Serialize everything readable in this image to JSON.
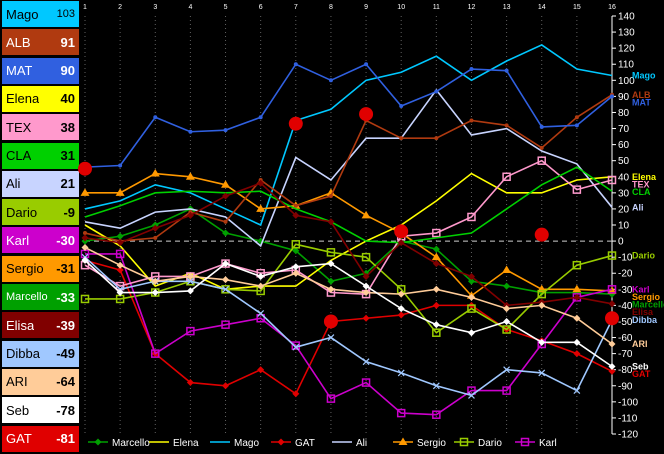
{
  "leaderboard": [
    {
      "name": "Mago",
      "value": "103",
      "bg": "#00c8ff",
      "fg": "#000000"
    },
    {
      "name": "ALB",
      "value": "91",
      "bg": "#b03a10",
      "fg": "#ffffff"
    },
    {
      "name": "MAT",
      "value": "90",
      "bg": "#3060e0",
      "fg": "#ffffff"
    },
    {
      "name": "Elena",
      "value": "40",
      "bg": "#ffff00",
      "fg": "#000000"
    },
    {
      "name": "TEX",
      "value": "38",
      "bg": "#ff99cc",
      "fg": "#000000"
    },
    {
      "name": "CLA",
      "value": "31",
      "bg": "#00d000",
      "fg": "#000000"
    },
    {
      "name": "Ali",
      "value": "21",
      "bg": "#c8d4ff",
      "fg": "#000000"
    },
    {
      "name": "Dario",
      "value": "-9",
      "bg": "#99cc00",
      "fg": "#000000"
    },
    {
      "name": "Karl",
      "value": "-30",
      "bg": "#cc00cc",
      "fg": "#ffffff"
    },
    {
      "name": "Sergio",
      "value": "-31",
      "bg": "#ff9900",
      "fg": "#000000"
    },
    {
      "name": "Marcello",
      "value": "-33",
      "bg": "#00a000",
      "fg": "#ffffff"
    },
    {
      "name": "Elisa",
      "value": "-39",
      "bg": "#800000",
      "fg": "#ffffff"
    },
    {
      "name": "Dibba",
      "value": "-49",
      "bg": "#a0c8ff",
      "fg": "#000000"
    },
    {
      "name": "ARI",
      "value": "-64",
      "bg": "#ffcc99",
      "fg": "#000000"
    },
    {
      "name": "Seb",
      "value": "-78",
      "bg": "#ffffff",
      "fg": "#000000"
    },
    {
      "name": "GAT",
      "value": "-81",
      "bg": "#e00000",
      "fg": "#ffffff"
    }
  ],
  "chart_data": {
    "type": "line",
    "x": [
      1,
      2,
      3,
      4,
      5,
      6,
      7,
      8,
      9,
      10,
      11,
      12,
      13,
      14,
      15,
      16
    ],
    "ylim": [
      -120,
      140
    ],
    "yticks": [
      140,
      130,
      120,
      110,
      100,
      90,
      80,
      70,
      60,
      50,
      40,
      30,
      20,
      10,
      0,
      -10,
      -20,
      -30,
      -40,
      -50,
      -60,
      -70,
      -80,
      -90,
      -100,
      -110,
      -120
    ],
    "grid": true,
    "legend_position": "bottom",
    "series": [
      {
        "name": "Marcello",
        "color": "#00a000",
        "marker": "diamond",
        "legend": true,
        "end_label": "Marcello",
        "values": [
          0,
          3,
          10,
          20,
          5,
          0,
          -6,
          -25,
          -20,
          0,
          -5,
          -25,
          -28,
          -32,
          -32,
          -33
        ]
      },
      {
        "name": "Elena",
        "color": "#ffff00",
        "marker": "none",
        "legend": true,
        "end_label": "Elena",
        "values": [
          10,
          -3,
          -28,
          -20,
          -30,
          -28,
          -28,
          -12,
          0,
          10,
          25,
          42,
          30,
          30,
          38,
          40
        ]
      },
      {
        "name": "Mago",
        "color": "#00c8ff",
        "marker": "none",
        "legend": true,
        "end_label": "Mago",
        "values": [
          20,
          25,
          35,
          30,
          20,
          10,
          75,
          82,
          100,
          105,
          115,
          100,
          112,
          122,
          107,
          103
        ]
      },
      {
        "name": "GAT",
        "color": "#e00000",
        "marker": "diamond",
        "legend": true,
        "end_label": "GAT",
        "values": [
          -12,
          -18,
          -70,
          -88,
          -90,
          -80,
          -95,
          -50,
          -48,
          -46,
          -40,
          -40,
          -55,
          -62,
          -70,
          -81
        ]
      },
      {
        "name": "Ali",
        "color": "#c8d4ff",
        "marker": "none",
        "legend": true,
        "end_label": "Ali",
        "values": [
          12,
          8,
          18,
          20,
          15,
          -3,
          52,
          38,
          64,
          64,
          94,
          66,
          70,
          56,
          48,
          21
        ]
      },
      {
        "name": "Sergio",
        "color": "#ff9900",
        "marker": "triangle",
        "legend": true,
        "end_label": "Sergio",
        "values": [
          30,
          30,
          42,
          40,
          35,
          20,
          22,
          30,
          16,
          5,
          -10,
          -34,
          -18,
          -30,
          -30,
          -31
        ]
      },
      {
        "name": "Dario",
        "color": "#99cc00",
        "marker": "square",
        "legend": true,
        "end_label": "Dario",
        "values": [
          -36,
          -36,
          -32,
          -25,
          -30,
          -31,
          -2,
          -7,
          -10,
          -30,
          -57,
          -42,
          -55,
          -33,
          -15,
          -9
        ]
      },
      {
        "name": "Karl",
        "color": "#cc00cc",
        "marker": "square",
        "legend": true,
        "end_label": "Karl",
        "values": [
          -8,
          -8,
          -70,
          -56,
          -52,
          -48,
          -65,
          -98,
          -88,
          -107,
          -108,
          -93,
          -93,
          -64,
          -35,
          -30
        ]
      },
      {
        "name": "ALB",
        "color": "#b03a10",
        "marker": "circle",
        "legend": false,
        "end_label": "ALB",
        "values": [
          5,
          0,
          2,
          18,
          12,
          38,
          22,
          28,
          75,
          64,
          64,
          75,
          72,
          58,
          77,
          91
        ]
      },
      {
        "name": "MAT",
        "color": "#3060e0",
        "marker": "circle",
        "legend": false,
        "end_label": "MAT",
        "values": [
          46,
          47,
          77,
          68,
          69,
          77,
          110,
          100,
          110,
          84,
          93,
          107,
          106,
          71,
          72,
          90
        ]
      },
      {
        "name": "TEX",
        "color": "#ff99cc",
        "marker": "square",
        "legend": false,
        "end_label": "TEX",
        "values": [
          -15,
          -28,
          -22,
          -22,
          -14,
          -20,
          -18,
          -32,
          -33,
          3,
          5,
          15,
          40,
          50,
          32,
          38
        ]
      },
      {
        "name": "CLA",
        "color": "#00d000",
        "marker": "none",
        "legend": false,
        "end_label": "CLA",
        "values": [
          15,
          22,
          30,
          31,
          30,
          31,
          20,
          12,
          0,
          -1,
          2,
          5,
          20,
          35,
          46,
          31
        ]
      },
      {
        "name": "Elisa",
        "color": "#800000",
        "marker": "diamond",
        "legend": false,
        "end_label": "Elisa",
        "values": [
          2,
          -1,
          8,
          16,
          28,
          36,
          16,
          12,
          -22,
          -1,
          -14,
          -22,
          -40,
          -38,
          -35,
          -39
        ]
      },
      {
        "name": "Dibba",
        "color": "#a0c8ff",
        "marker": "x",
        "legend": false,
        "end_label": "Dibba",
        "values": [
          -10,
          -30,
          -25,
          -25,
          -30,
          -45,
          -66,
          -60,
          -75,
          -82,
          -90,
          -96,
          -80,
          -82,
          -93,
          -49
        ]
      },
      {
        "name": "ARI",
        "color": "#ffcc99",
        "marker": "diamond",
        "legend": false,
        "end_label": "ARI",
        "values": [
          -4,
          -15,
          -25,
          -22,
          -24,
          -28,
          -20,
          -30,
          -32,
          -33,
          -30,
          -35,
          -42,
          -40,
          -48,
          -64
        ]
      },
      {
        "name": "Seb",
        "color": "#ffffff",
        "marker": "diamond",
        "legend": false,
        "end_label": "Seb",
        "values": [
          -12,
          -32,
          -32,
          -31,
          -14,
          -22,
          -16,
          -14,
          -28,
          -42,
          -52,
          -57,
          -50,
          -63,
          -63,
          -78
        ]
      }
    ],
    "highlights": [
      {
        "x": 1,
        "y": 45
      },
      {
        "x": 7,
        "y": 73
      },
      {
        "x": 9,
        "y": 79
      },
      {
        "x": 10,
        "y": 6
      },
      {
        "x": 8,
        "y": -50
      },
      {
        "x": 14,
        "y": 4
      },
      {
        "x": 16,
        "y": -48
      }
    ]
  }
}
